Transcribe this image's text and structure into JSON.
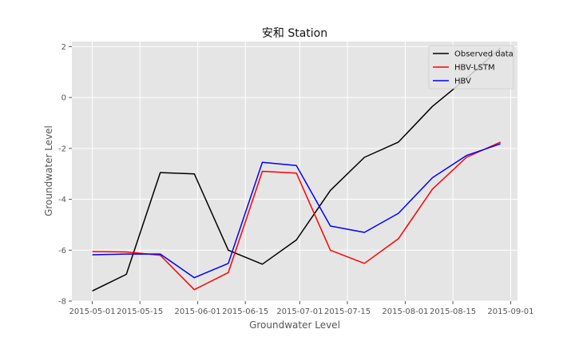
{
  "chart_data": {
    "type": "line",
    "title": "安和 Station",
    "xlabel": "Groundwater Level",
    "ylabel": "Groundwater Level",
    "xlim": [
      "2015-04-25",
      "2015-09-03"
    ],
    "ylim": [
      -8,
      2.2
    ],
    "x_ticks": [
      "2015-05-01",
      "2015-05-15",
      "2015-06-01",
      "2015-06-15",
      "2015-07-01",
      "2015-07-15",
      "2015-08-01",
      "2015-08-15",
      "2015-09-01"
    ],
    "y_ticks": [
      -8,
      -6,
      -4,
      -2,
      0,
      2
    ],
    "grid": true,
    "legend": "top-right",
    "series": [
      {
        "name": "Observed data",
        "color": "#000000",
        "points": [
          [
            "2015-05-01",
            -7.6
          ],
          [
            "2015-05-11",
            -6.95
          ],
          [
            "2015-05-21",
            -2.95
          ],
          [
            "2015-05-31",
            -3.0
          ],
          [
            "2015-06-10",
            -6.0
          ],
          [
            "2015-06-20",
            -6.55
          ],
          [
            "2015-06-30",
            -5.6
          ],
          [
            "2015-07-10",
            -3.65
          ],
          [
            "2015-07-20",
            -2.35
          ],
          [
            "2015-07-30",
            -1.75
          ],
          [
            "2015-08-09",
            -0.35
          ],
          [
            "2015-08-19",
            0.75
          ],
          [
            "2015-08-29",
            1.95
          ]
        ]
      },
      {
        "name": "HBV-LSTM",
        "color": "#ff0000",
        "points": [
          [
            "2015-05-01",
            -6.05
          ],
          [
            "2015-05-11",
            -6.07
          ],
          [
            "2015-05-21",
            -6.2
          ],
          [
            "2015-05-31",
            -7.55
          ],
          [
            "2015-06-10",
            -6.88
          ],
          [
            "2015-06-20",
            -2.9
          ],
          [
            "2015-06-30",
            -2.97
          ],
          [
            "2015-07-10",
            -6.0
          ],
          [
            "2015-07-20",
            -6.52
          ],
          [
            "2015-07-30",
            -5.55
          ],
          [
            "2015-08-09",
            -3.6
          ],
          [
            "2015-08-19",
            -2.35
          ],
          [
            "2015-08-29",
            -1.75
          ]
        ]
      },
      {
        "name": "HBV",
        "color": "#0000ff",
        "points": [
          [
            "2015-05-01",
            -6.18
          ],
          [
            "2015-05-11",
            -6.15
          ],
          [
            "2015-05-21",
            -6.15
          ],
          [
            "2015-05-31",
            -7.08
          ],
          [
            "2015-06-10",
            -6.52
          ],
          [
            "2015-06-20",
            -2.55
          ],
          [
            "2015-06-30",
            -2.67
          ],
          [
            "2015-07-10",
            -5.05
          ],
          [
            "2015-07-20",
            -5.3
          ],
          [
            "2015-07-30",
            -4.55
          ],
          [
            "2015-08-09",
            -3.15
          ],
          [
            "2015-08-19",
            -2.28
          ],
          [
            "2015-08-29",
            -1.82
          ]
        ]
      }
    ]
  }
}
